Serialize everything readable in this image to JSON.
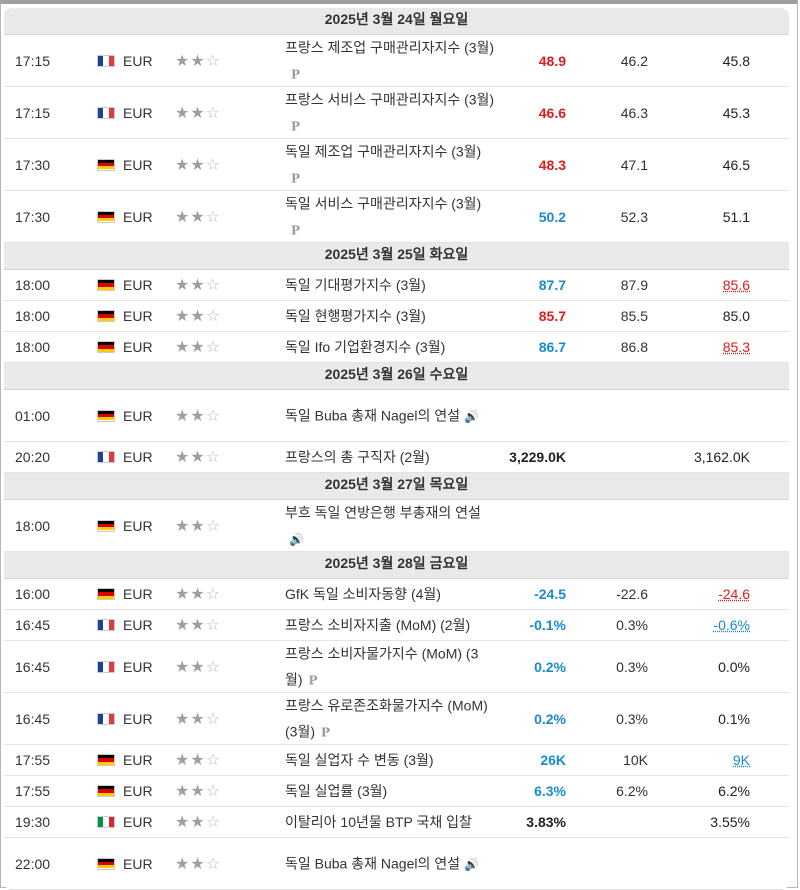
{
  "days": [
    {
      "label": "2025년 3월 24일 월요일",
      "rows": [
        {
          "time": "17:15",
          "country": "fr",
          "currency": "EUR",
          "stars": 2,
          "event": "프랑스 제조업 구매관리자지수 (3월)",
          "prelim": "P",
          "actual": "48.9",
          "actual_color": "red",
          "forecast": "46.2",
          "previous": "45.8",
          "prev_color": "black",
          "tall": true
        },
        {
          "time": "17:15",
          "country": "fr",
          "currency": "EUR",
          "stars": 2,
          "event": "프랑스 서비스 구매관리자지수 (3월)",
          "prelim": "P",
          "actual": "46.6",
          "actual_color": "red",
          "forecast": "46.3",
          "previous": "45.3",
          "prev_color": "black",
          "tall": true
        },
        {
          "time": "17:30",
          "country": "de",
          "currency": "EUR",
          "stars": 2,
          "event": "독일 제조업 구매관리자지수 (3월)",
          "prelim": "P",
          "actual": "48.3",
          "actual_color": "red",
          "forecast": "47.1",
          "previous": "46.5",
          "prev_color": "black",
          "tall": true
        },
        {
          "time": "17:30",
          "country": "de",
          "currency": "EUR",
          "stars": 2,
          "event": "독일 서비스 구매관리자지수 (3월)",
          "prelim": "P",
          "actual": "50.2",
          "actual_color": "blue",
          "forecast": "52.3",
          "previous": "51.1",
          "prev_color": "black",
          "tall": true
        }
      ]
    },
    {
      "label": "2025년 3월 25일 화요일",
      "rows": [
        {
          "time": "18:00",
          "country": "de",
          "currency": "EUR",
          "stars": 2,
          "event": "독일 기대평가지수 (3월)",
          "prelim": "",
          "actual": "87.7",
          "actual_color": "blue",
          "forecast": "87.9",
          "previous": "85.6",
          "prev_color": "rev-red",
          "tall": false
        },
        {
          "time": "18:00",
          "country": "de",
          "currency": "EUR",
          "stars": 2,
          "event": "독일 현행평가지수 (3월)",
          "prelim": "",
          "actual": "85.7",
          "actual_color": "red",
          "forecast": "85.5",
          "previous": "85.0",
          "prev_color": "black",
          "tall": false
        },
        {
          "time": "18:00",
          "country": "de",
          "currency": "EUR",
          "stars": 2,
          "event": "독일 Ifo 기업환경지수 (3월)",
          "prelim": "",
          "actual": "86.7",
          "actual_color": "blue",
          "forecast": "86.8",
          "previous": "85.3",
          "prev_color": "rev-red",
          "tall": false
        }
      ]
    },
    {
      "label": "2025년 3월 26일 수요일",
      "rows": [
        {
          "time": "01:00",
          "country": "de",
          "currency": "EUR",
          "stars": 2,
          "event": "독일 Buba 총재 Nagel의 연설",
          "speech": true,
          "actual": "",
          "actual_color": "black",
          "forecast": "",
          "previous": "",
          "prev_color": "black",
          "tall": true
        },
        {
          "time": "20:20",
          "country": "fr",
          "currency": "EUR",
          "stars": 2,
          "event": "프랑스의 총 구직자 (2월)",
          "prelim": "",
          "actual": "3,229.0K",
          "actual_color": "black",
          "forecast": "",
          "previous": "3,162.0K",
          "prev_color": "black",
          "tall": false
        }
      ]
    },
    {
      "label": "2025년 3월 27일 목요일",
      "rows": [
        {
          "time": "18:00",
          "country": "de",
          "currency": "EUR",
          "stars": 2,
          "event": "부흐 독일 연방은행 부총재의 연설",
          "speech": true,
          "actual": "",
          "actual_color": "black",
          "forecast": "",
          "previous": "",
          "prev_color": "black",
          "tall": true
        }
      ]
    },
    {
      "label": "2025년 3월 28일 금요일",
      "rows": [
        {
          "time": "16:00",
          "country": "de",
          "currency": "EUR",
          "stars": 2,
          "event": "GfK 독일 소비자동향 (4월)",
          "prelim": "",
          "actual": "-24.5",
          "actual_color": "blue",
          "forecast": "-22.6",
          "previous": "-24.6",
          "prev_color": "rev-red",
          "tall": false
        },
        {
          "time": "16:45",
          "country": "fr",
          "currency": "EUR",
          "stars": 2,
          "event": "프랑스 소비자지출 (MoM) (2월)",
          "prelim": "",
          "actual": "-0.1%",
          "actual_color": "blue",
          "forecast": "0.3%",
          "previous": "-0.6%",
          "prev_color": "rev-blue",
          "tall": false
        },
        {
          "time": "16:45",
          "country": "fr",
          "currency": "EUR",
          "stars": 2,
          "event": "프랑스 소비자물가지수 (MoM) (3월)",
          "prelim": "P",
          "actual": "0.2%",
          "actual_color": "blue",
          "forecast": "0.3%",
          "previous": "0.0%",
          "prev_color": "black",
          "tall": true
        },
        {
          "time": "16:45",
          "country": "fr",
          "currency": "EUR",
          "stars": 2,
          "event": "프랑스 유로존조화물가지수 (MoM) (3월)",
          "prelim": "P",
          "actual": "0.2%",
          "actual_color": "blue",
          "forecast": "0.3%",
          "previous": "0.1%",
          "prev_color": "black",
          "tall": true
        },
        {
          "time": "17:55",
          "country": "de",
          "currency": "EUR",
          "stars": 2,
          "event": "독일 실업자 수 변동 (3월)",
          "prelim": "",
          "actual": "26K",
          "actual_color": "blue",
          "forecast": "10K",
          "previous": "9K",
          "prev_color": "rev-blue",
          "tall": false
        },
        {
          "time": "17:55",
          "country": "de",
          "currency": "EUR",
          "stars": 2,
          "event": "독일 실업률 (3월)",
          "prelim": "",
          "actual": "6.3%",
          "actual_color": "blue",
          "forecast": "6.2%",
          "previous": "6.2%",
          "prev_color": "black",
          "tall": false
        },
        {
          "time": "19:30",
          "country": "it",
          "currency": "EUR",
          "stars": 2,
          "event": "이탈리아 10년물 BTP 국채 입찰",
          "prelim": "",
          "actual": "3.83%",
          "actual_color": "black",
          "forecast": "",
          "previous": "3.55%",
          "prev_color": "black",
          "tall": false
        },
        {
          "time": "22:00",
          "country": "de",
          "currency": "EUR",
          "stars": 2,
          "event": "독일 Buba 총재 Nagel의 연설",
          "speech": true,
          "actual": "",
          "actual_color": "black",
          "forecast": "",
          "previous": "",
          "prev_color": "black",
          "tall": true
        }
      ]
    }
  ],
  "colors": {
    "red": "#e01b1b",
    "blue": "#1a8ad0",
    "header_bg": "#e9e9e9"
  },
  "icons": {
    "star_full": "star-icon",
    "star_empty": "star-outline-icon",
    "speech": "speaker-icon",
    "prelim": "preliminary-icon"
  }
}
